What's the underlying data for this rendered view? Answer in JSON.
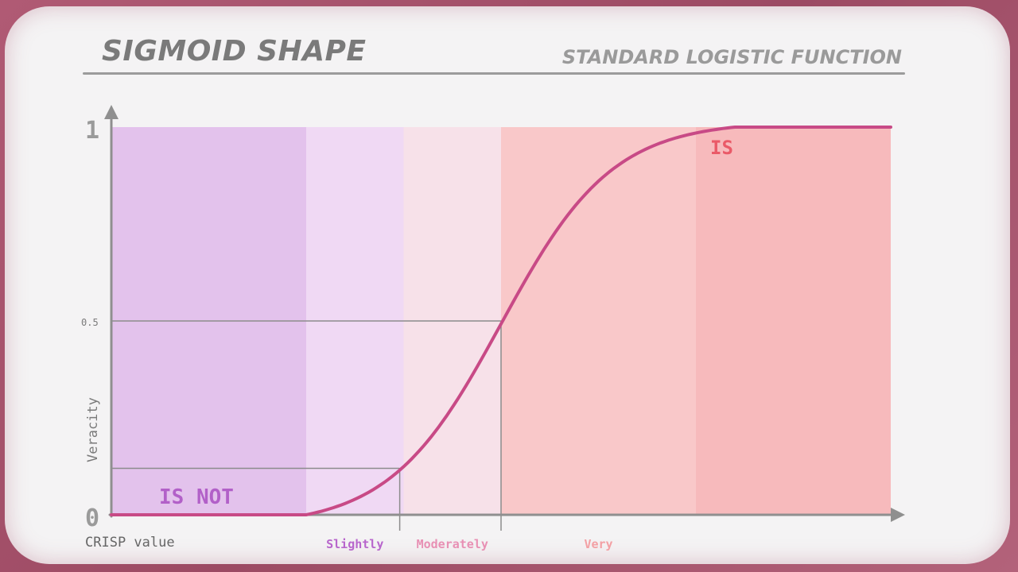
{
  "header": {
    "title": "SIGMOID SHAPE",
    "subtitle": "STANDARD LOGISTIC FUNCTION"
  },
  "colors": {
    "curve": "#c84a86",
    "is_not": "#b260c8",
    "is": "#ea5a68",
    "axis": "#8f8f8f",
    "slightly": "#b866cc",
    "moderately": "#e890b4",
    "very": "#f3a0a4"
  },
  "chart_data": {
    "type": "line",
    "xlabel": "CRISP value",
    "ylabel": "Veracity",
    "ylim": [
      0,
      1
    ],
    "y_ticks": [
      {
        "value": 0,
        "label": "0"
      },
      {
        "value": 0.5,
        "label": "0.5"
      },
      {
        "value": 1,
        "label": "1"
      }
    ],
    "series": [
      {
        "x": [
          0,
          0.1,
          0.2,
          0.25,
          0.3,
          0.35,
          0.4,
          0.45,
          0.5,
          0.55,
          0.6,
          0.65,
          0.7,
          0.75,
          0.8,
          0.9,
          1
        ],
        "values": [
          0,
          0,
          0,
          0.005,
          0.03,
          0.08,
          0.16,
          0.31,
          0.5,
          0.69,
          0.84,
          0.92,
          0.97,
          0.995,
          1,
          1,
          1
        ]
      }
    ],
    "markers": [
      {
        "x": 0.37,
        "y": 0.12
      },
      {
        "x": 0.5,
        "y": 0.5
      }
    ],
    "bands": [
      {
        "from": 0,
        "to": 0.25,
        "label": ""
      },
      {
        "from": 0.25,
        "to": 0.375,
        "label": "Slightly"
      },
      {
        "from": 0.375,
        "to": 0.5,
        "label": "Moderately"
      },
      {
        "from": 0.5,
        "to": 0.75,
        "label": "Very"
      },
      {
        "from": 0.75,
        "to": 1,
        "label": ""
      }
    ],
    "annotations": {
      "is_not": "IS NOT",
      "is": "IS"
    }
  }
}
